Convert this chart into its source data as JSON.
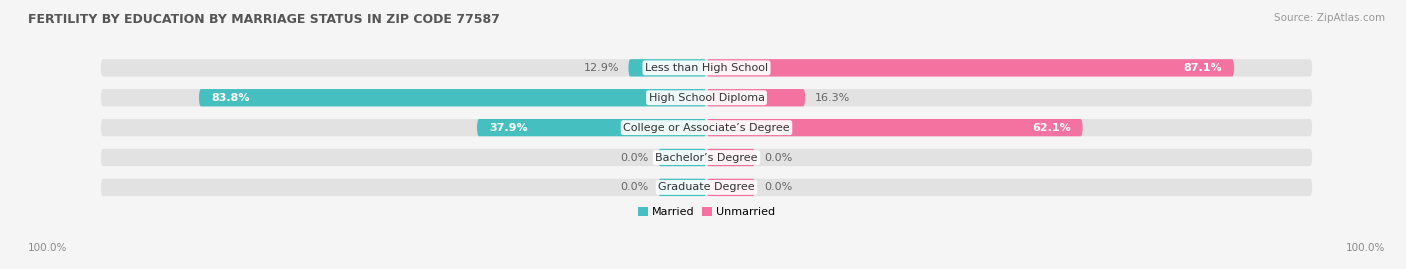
{
  "title": "FERTILITY BY EDUCATION BY MARRIAGE STATUS IN ZIP CODE 77587",
  "source": "Source: ZipAtlas.com",
  "categories": [
    "Less than High School",
    "High School Diploma",
    "College or Associate’s Degree",
    "Bachelor’s Degree",
    "Graduate Degree"
  ],
  "married": [
    12.9,
    83.8,
    37.9,
    0.0,
    0.0
  ],
  "unmarried": [
    87.1,
    16.3,
    62.1,
    0.0,
    0.0
  ],
  "married_color": "#45BFBF",
  "unmarried_color": "#F472A0",
  "bg_color": "#f5f5f5",
  "bar_bg_color": "#e2e2e2",
  "row_bg_color": "#e8e8e8",
  "title_fontsize": 9,
  "label_fontsize": 8,
  "source_fontsize": 7.5,
  "tick_fontsize": 7.5,
  "axis_label_left": "100.0%",
  "axis_label_right": "100.0%",
  "max_val": 100,
  "stub_val": 8
}
